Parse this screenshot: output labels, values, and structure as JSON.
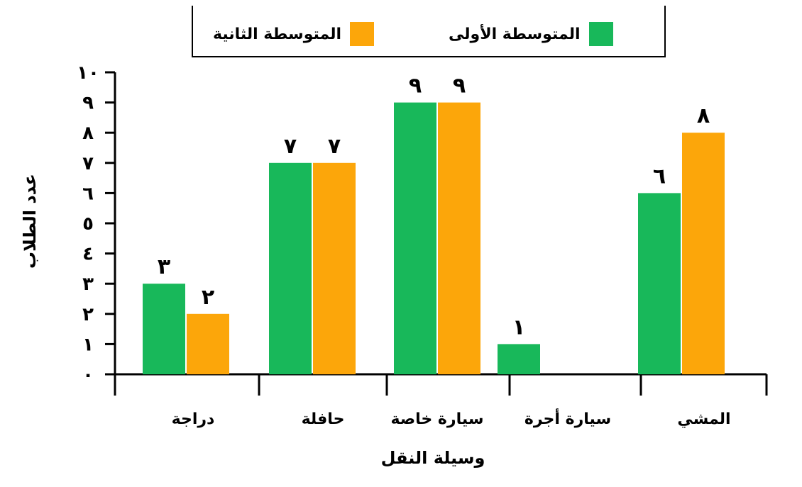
{
  "chart_data": {
    "type": "bar",
    "categories": [
      "المشي",
      "سيارة أجرة",
      "سيارة خاصة",
      "حافلة",
      "دراجة"
    ],
    "series": [
      {
        "name": "المتوسطة الأولى",
        "color": "#18b85a",
        "values": [
          6,
          1,
          9,
          7,
          3
        ]
      },
      {
        "name": "المتوسطة الثانية",
        "color": "#fca60a",
        "values": [
          8,
          0,
          9,
          7,
          2
        ]
      }
    ],
    "bar_labels": [
      [
        "٦",
        "١",
        "٩",
        "٧",
        "٣"
      ],
      [
        "٨",
        "",
        "٩",
        "٧",
        "٢"
      ]
    ],
    "y_ticks": [
      "٠",
      "١",
      "٢",
      "٣",
      "٤",
      "٥",
      "٦",
      "٧",
      "٨",
      "٩",
      "١٠"
    ],
    "ylim": [
      0,
      10
    ],
    "xlabel": "وسيلة النقل",
    "ylabel": "عدد الطلاب",
    "legend_position": "top",
    "grid": false
  }
}
